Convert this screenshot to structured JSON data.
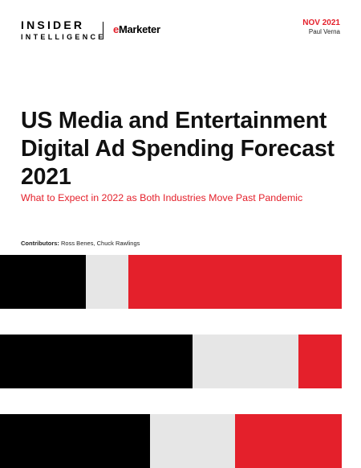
{
  "header": {
    "brand_line1": "INSIDER",
    "brand_line2": "INTELLIGENCE",
    "partner_prefix": "e",
    "partner_name": "Marketer",
    "date": "NOV 2021",
    "author": "Paul Verna"
  },
  "title": "US Media and Entertainment Digital Ad Spending Forecast 2021",
  "subtitle": "What to Expect in 2022 as Both Industries Move Past Pandemic",
  "contributors": {
    "label": "Contributors:",
    "names": "Ross Benes, Chuck Rawlings"
  },
  "colors": {
    "accent": "#e4202b",
    "black": "#000000",
    "gray": "#e6e6e6"
  }
}
